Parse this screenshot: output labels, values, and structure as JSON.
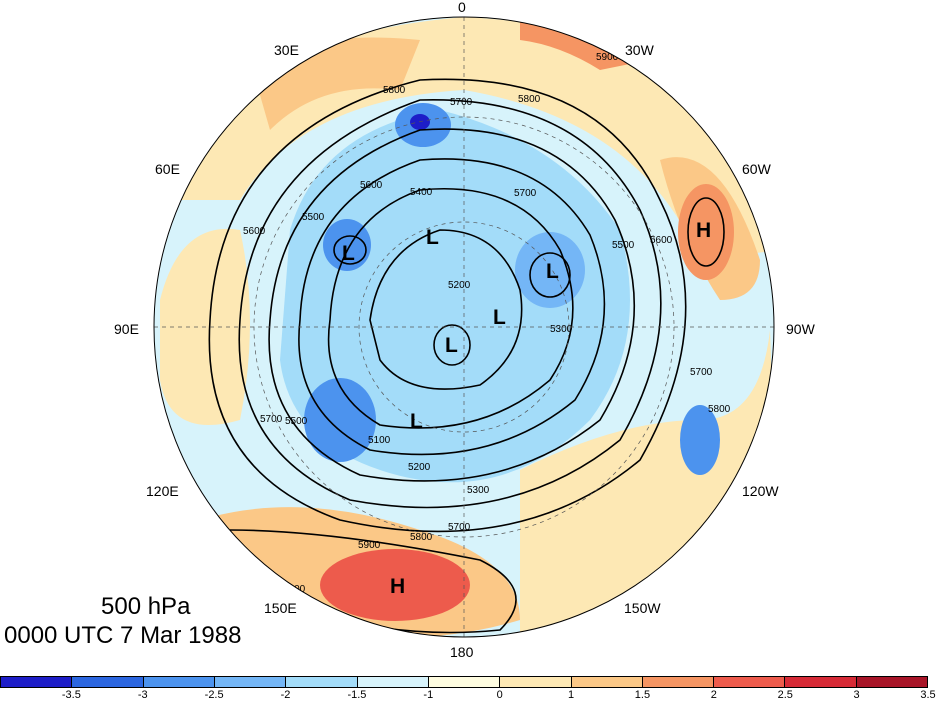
{
  "title": {
    "level": "500 hPa",
    "datetime": "0000 UTC 7 Mar 1988"
  },
  "longitude_labels": [
    "0",
    "30W",
    "60W",
    "90W",
    "120W",
    "150W",
    "180",
    "150E",
    "120E",
    "90E",
    "60E",
    "30E"
  ],
  "pressure_systems": [
    "H",
    "H",
    "L",
    "L",
    "L",
    "L",
    "L",
    "L"
  ],
  "contour_labels": [
    "5900",
    "5800",
    "5700",
    "5800",
    "5700",
    "5600",
    "5400",
    "5500",
    "5600",
    "5500",
    "5200",
    "5300",
    "5100",
    "5200",
    "5300",
    "5700",
    "5800",
    "5900",
    "5900",
    "5500",
    "5600",
    "5700",
    "5800",
    "5700"
  ],
  "colorbar": {
    "colors": [
      "#1d1dc8",
      "#2b66e0",
      "#4c93ee",
      "#74b6f6",
      "#a3dcf9",
      "#d7f3fb",
      "#fefce0",
      "#fde8b4",
      "#fbc887",
      "#f59563",
      "#ed5b4c",
      "#d62a36",
      "#a81528"
    ],
    "tick_labels": [
      "-3.5",
      "-3",
      "-2.5",
      "-2",
      "-1.5",
      "-1",
      "0",
      "1",
      "1.5",
      "2",
      "2.5",
      "3",
      "3.5"
    ]
  }
}
